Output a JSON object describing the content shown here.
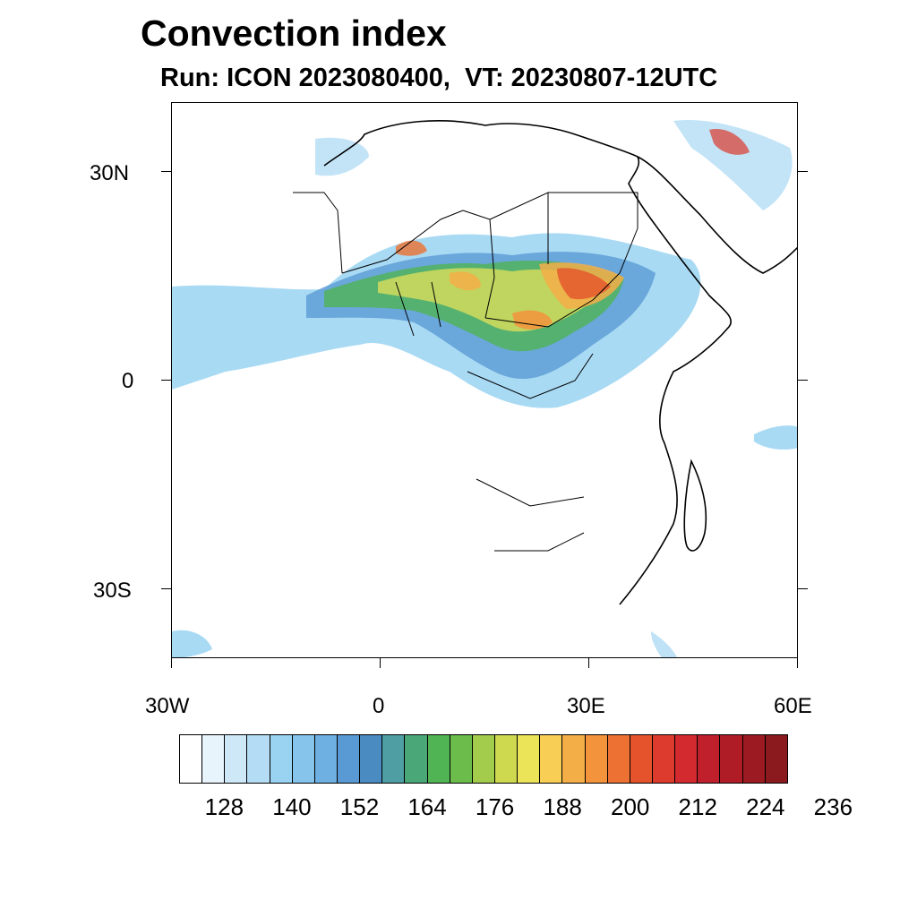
{
  "header": {
    "title": "Convection index",
    "subtitle": "Run: ICON 2023080400,  VT: 20230807-12UTC"
  },
  "axes": {
    "lat_labels": [
      "30N",
      "0",
      "30S"
    ],
    "lon_labels": [
      "30W",
      "0",
      "30E",
      "60E"
    ],
    "lat_range": [
      -40,
      40
    ],
    "lon_range": [
      -30,
      60
    ]
  },
  "colorbar": {
    "colors": [
      "#ffffff",
      "#e8f4fc",
      "#cfe8f8",
      "#b4ddf5",
      "#9ad3f2",
      "#86c4ec",
      "#6fb0e2",
      "#5a9ad4",
      "#4a8bc2",
      "#4e9ea4",
      "#4aa878",
      "#50b454",
      "#6cbc4c",
      "#a4cc4c",
      "#cfd94f",
      "#ece458",
      "#f8cf54",
      "#f4ae48",
      "#f3933c",
      "#ec7132",
      "#e4532c",
      "#dc3b2e",
      "#d22a2e",
      "#c01f2c",
      "#b01c26",
      "#9c1b22",
      "#8a1a1e"
    ],
    "labels": [
      "128",
      "140",
      "152",
      "164",
      "176",
      "188",
      "200",
      "212",
      "224",
      "236"
    ]
  },
  "legend_colors": {
    "frame": "#000000"
  }
}
